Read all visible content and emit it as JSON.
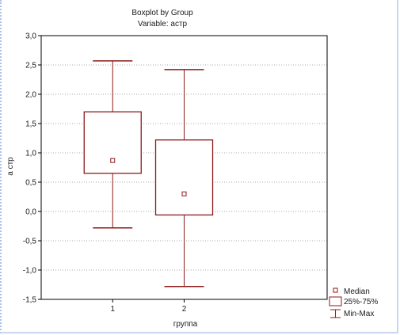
{
  "chart_data": {
    "type": "boxplot",
    "title": "Boxplot by Group",
    "subtitle": "Variable: астр",
    "xlabel": "группа",
    "ylabel": "а стр",
    "categories": [
      "1",
      "2"
    ],
    "boxes": [
      {
        "category": "1",
        "min": -0.28,
        "q1": 0.65,
        "median": 0.87,
        "q3": 1.7,
        "max": 2.57
      },
      {
        "category": "2",
        "min": -1.28,
        "q1": -0.06,
        "median": 0.3,
        "q3": 1.22,
        "max": 2.42
      }
    ],
    "ylim": [
      -1.5,
      3.0
    ],
    "yticks": [
      "-1,5",
      "-1,0",
      "-0,5",
      "0,0",
      "0,5",
      "1,0",
      "1,5",
      "2,0",
      "2,5",
      "3,0"
    ],
    "grid": true,
    "legend_position": "bottom-right",
    "legend": [
      "Median",
      "25%-75%",
      "Min-Max"
    ],
    "color": "#8b1a1a"
  }
}
